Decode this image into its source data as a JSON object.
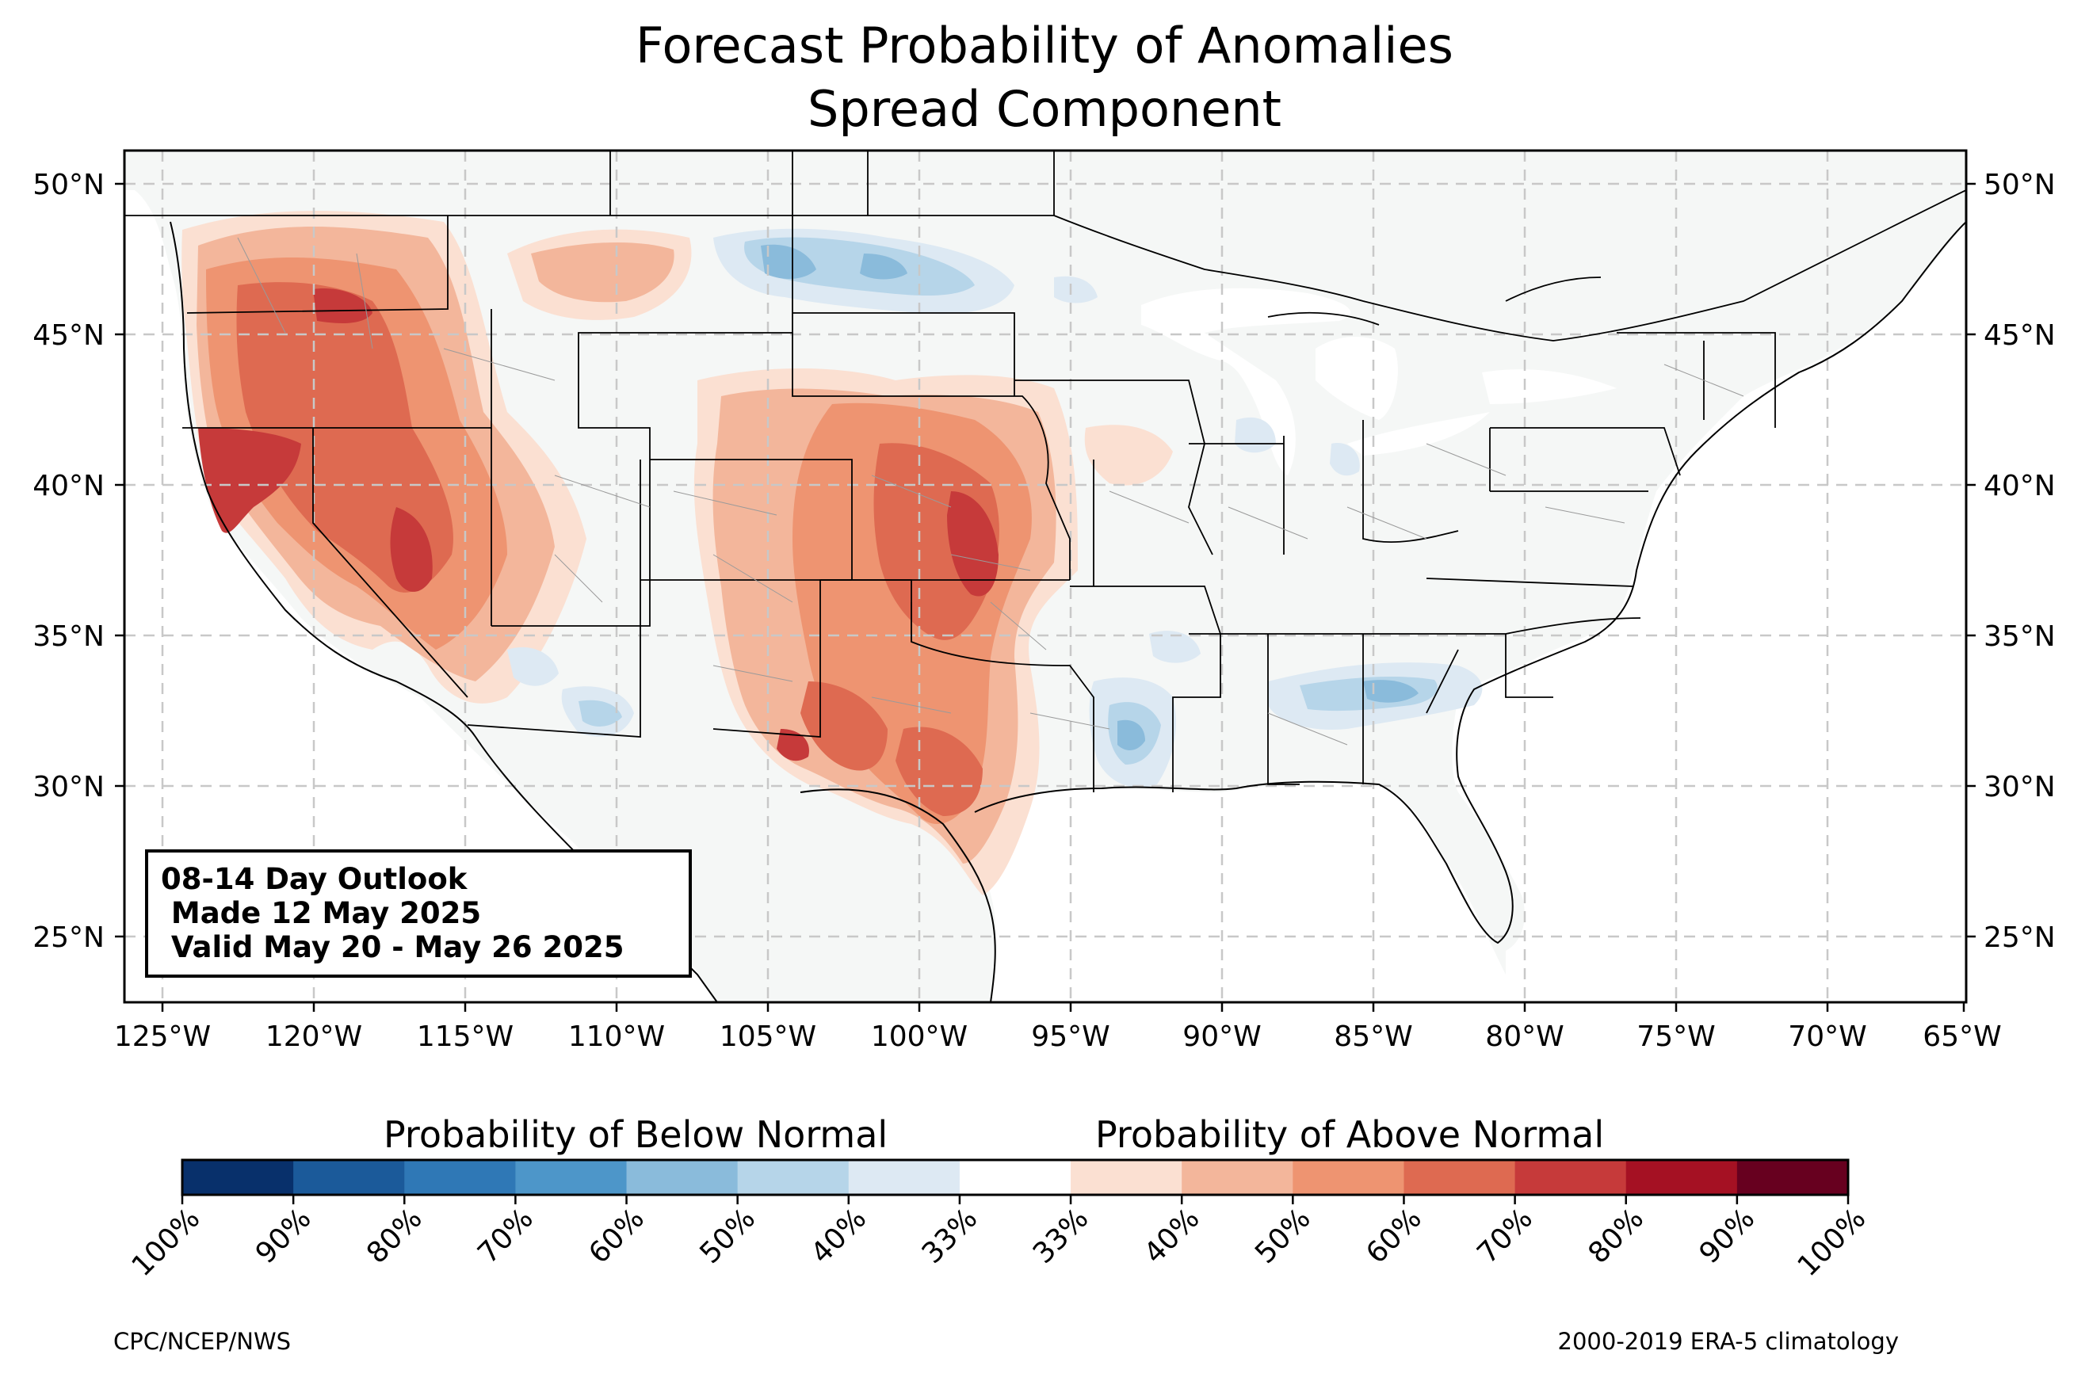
{
  "title": {
    "line1": "Forecast Probability of Anomalies",
    "line2": "Spread Component"
  },
  "map": {
    "lat_ticks": [
      "50°N",
      "45°N",
      "40°N",
      "35°N",
      "30°N",
      "25°N"
    ],
    "lon_ticks": [
      "125°W",
      "120°W",
      "115°W",
      "110°W",
      "105°W",
      "100°W",
      "95°W",
      "90°W",
      "85°W",
      "80°W",
      "75°W",
      "70°W",
      "65°W"
    ],
    "land_color": "#f5f7f6",
    "grid": true
  },
  "info_box": {
    "line1": "08-14 Day Outlook",
    "line2": " Made 12 May 2025",
    "line3": " Valid May 20 - May 26 2025"
  },
  "colorbar": {
    "below_label": "Probability of Below Normal",
    "above_label": "Probability of Above Normal",
    "tick_labels": [
      "100%",
      "90%",
      "80%",
      "70%",
      "60%",
      "50%",
      "40%",
      "33%",
      "33%",
      "40%",
      "50%",
      "60%",
      "70%",
      "80%",
      "90%",
      "100%"
    ],
    "colors": [
      "#08306b",
      "#1b5a9a",
      "#2f78b6",
      "#4d96c9",
      "#8abbdb",
      "#b6d5e9",
      "#dde9f3",
      "#ffffff",
      "#fbe0d2",
      "#f3b69b",
      "#ee9471",
      "#de6a51",
      "#c63a3a",
      "#a51123",
      "#67001f"
    ]
  },
  "footer": {
    "left": "CPC/NCEP/NWS",
    "right": "2000-2019 ERA-5 climatology"
  }
}
